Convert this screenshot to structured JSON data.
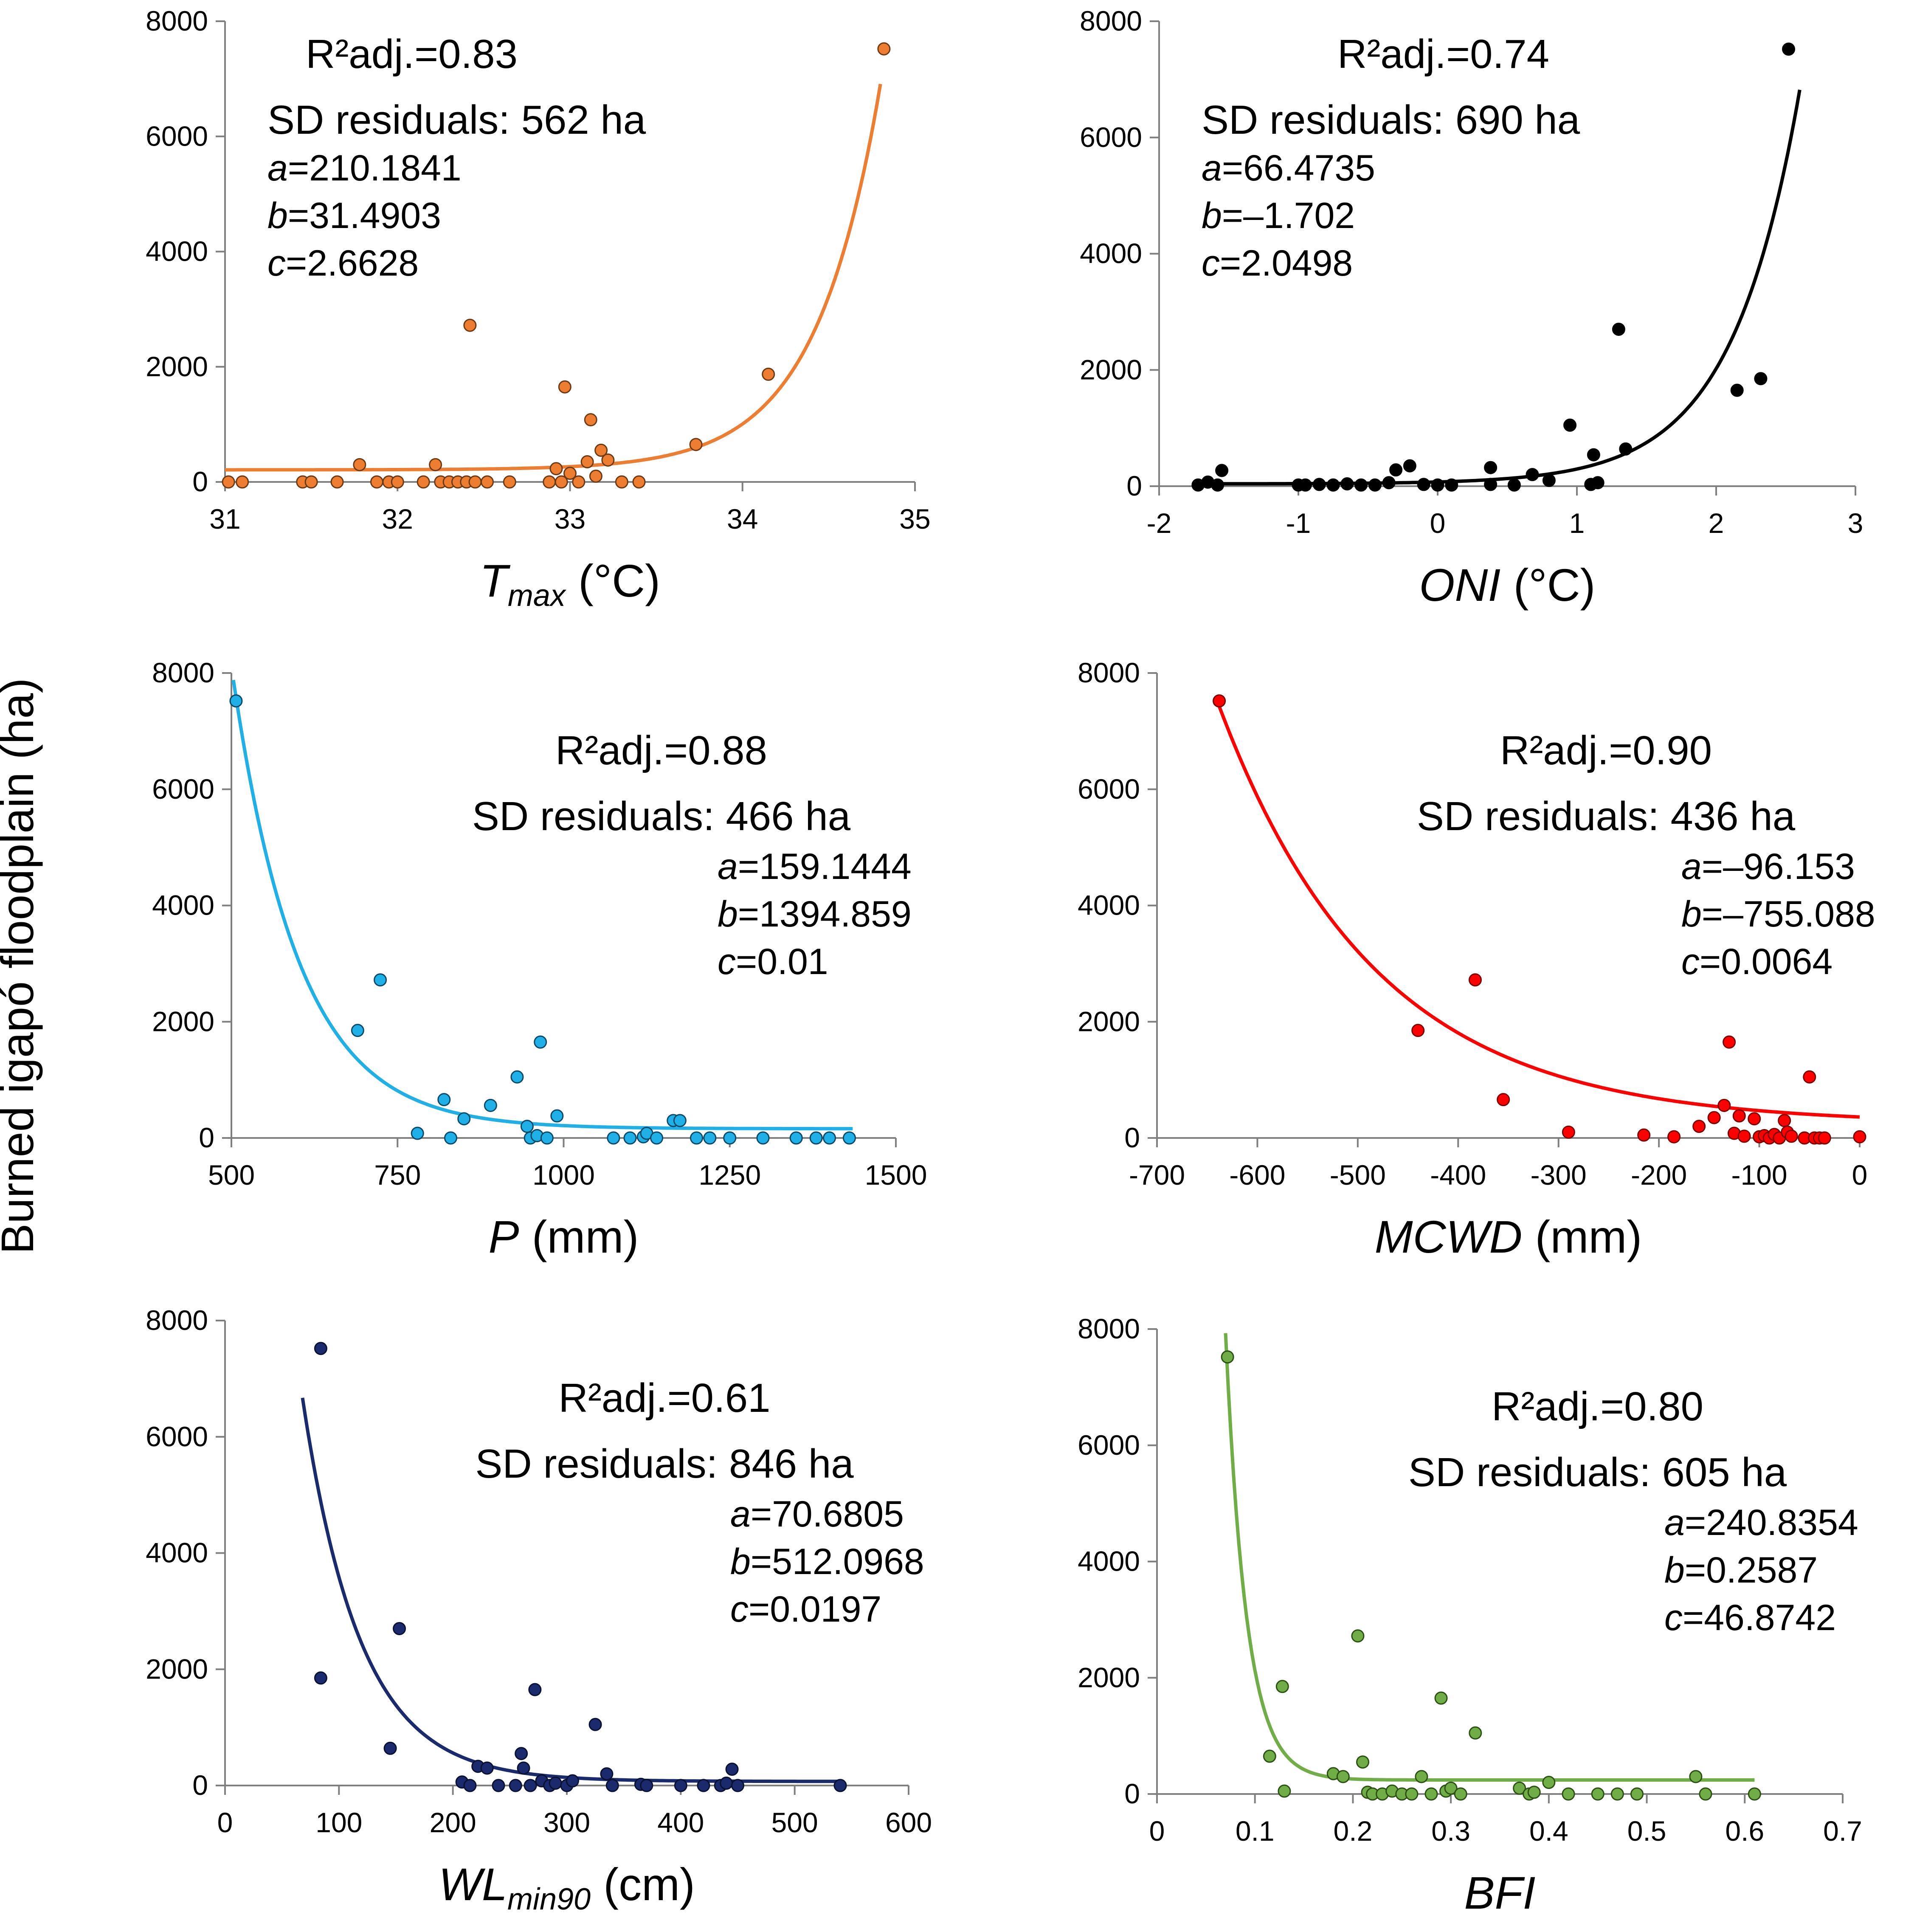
{
  "y_axis_label": "Burned igapó floodplain  (ha)",
  "chart_data": [
    {
      "type": "scatter",
      "id": "tmax",
      "xlabel": {
        "main": "T",
        "sub": "max",
        "unit": " (°C)"
      },
      "xlim": [
        31,
        35
      ],
      "xticks": [
        31,
        32,
        33,
        34,
        35
      ],
      "xtick_labels": [
        "31",
        "32",
        "33",
        "34",
        "35"
      ],
      "ylim": [
        0,
        8000
      ],
      "yticks": [
        0,
        2000,
        4000,
        6000,
        8000
      ],
      "ytick_labels": [
        "0",
        "2000",
        "4000",
        "6000",
        "8000"
      ],
      "color": "#ed7d31",
      "point_stroke": "#6b3a14",
      "annotations": {
        "r2": "R²adj.=0.83",
        "sd": "SD residuals:  562 ha",
        "a": "=210.1841",
        "b": "=31.4903",
        "c": "=2.6628",
        "align": "left"
      },
      "params": {
        "a": 210.1841,
        "b": 31.4903,
        "c": 2.6628
      },
      "fit": {
        "model": "exp_increase",
        "from": 31.0,
        "to": 34.8
      },
      "points": [
        [
          31.02,
          0
        ],
        [
          31.1,
          0
        ],
        [
          31.45,
          0
        ],
        [
          31.5,
          0
        ],
        [
          31.65,
          0
        ],
        [
          31.78,
          300
        ],
        [
          31.88,
          0
        ],
        [
          31.95,
          0
        ],
        [
          32.0,
          0
        ],
        [
          32.15,
          0
        ],
        [
          32.22,
          300
        ],
        [
          32.25,
          0
        ],
        [
          32.3,
          0
        ],
        [
          32.35,
          0
        ],
        [
          32.4,
          0
        ],
        [
          32.45,
          0
        ],
        [
          32.52,
          0
        ],
        [
          32.65,
          0
        ],
        [
          32.88,
          0
        ],
        [
          32.92,
          230
        ],
        [
          32.95,
          0
        ],
        [
          32.97,
          1650
        ],
        [
          33.0,
          150
        ],
        [
          33.05,
          0
        ],
        [
          33.1,
          350
        ],
        [
          33.12,
          1080
        ],
        [
          33.15,
          100
        ],
        [
          33.18,
          550
        ],
        [
          33.22,
          380
        ],
        [
          33.3,
          0
        ],
        [
          33.4,
          0
        ],
        [
          33.73,
          650
        ],
        [
          34.15,
          1870
        ],
        [
          34.82,
          7520
        ],
        [
          32.42,
          2720
        ]
      ]
    },
    {
      "type": "scatter",
      "id": "oni",
      "xlabel": {
        "main": "ONI",
        "sub": "",
        "unit": " (°C)"
      },
      "xlim": [
        -2,
        3
      ],
      "xticks": [
        -2,
        -1,
        0,
        1,
        2,
        3
      ],
      "xtick_labels": [
        "-2",
        "-1",
        "0",
        "1",
        "2",
        "3"
      ],
      "ylim": [
        0,
        8000
      ],
      "yticks": [
        0,
        2000,
        4000,
        6000,
        8000
      ],
      "ytick_labels": [
        "0",
        "2000",
        "4000",
        "6000",
        "8000"
      ],
      "color": "#000000",
      "point_stroke": "#000000",
      "annotations": {
        "r2": "R²adj.=0.74",
        "sd": "SD residuals:  690 ha",
        "a": "=66.4735",
        "b": "=–1.702",
        "c": "=2.0498",
        "align": "left"
      },
      "params": {
        "a": 66.4735,
        "b": -1.702,
        "c": 2.0498
      },
      "fit": {
        "model": "exp_increase",
        "from": -1.75,
        "to": 2.6
      },
      "points": [
        [
          -1.72,
          20
        ],
        [
          -1.65,
          70
        ],
        [
          -1.58,
          20
        ],
        [
          -1.55,
          270
        ],
        [
          -1.0,
          20
        ],
        [
          -0.95,
          20
        ],
        [
          -0.85,
          30
        ],
        [
          -0.75,
          20
        ],
        [
          -0.65,
          40
        ],
        [
          -0.55,
          20
        ],
        [
          -0.45,
          20
        ],
        [
          -0.35,
          60
        ],
        [
          -0.3,
          280
        ],
        [
          -0.2,
          350
        ],
        [
          -0.1,
          30
        ],
        [
          0.0,
          20
        ],
        [
          0.1,
          20
        ],
        [
          0.38,
          320
        ],
        [
          0.38,
          30
        ],
        [
          0.55,
          20
        ],
        [
          0.68,
          200
        ],
        [
          0.8,
          100
        ],
        [
          0.95,
          1050
        ],
        [
          1.1,
          30
        ],
        [
          1.12,
          540
        ],
        [
          1.15,
          60
        ],
        [
          1.3,
          2700
        ],
        [
          1.35,
          640
        ],
        [
          2.15,
          1650
        ],
        [
          2.32,
          1850
        ],
        [
          2.52,
          7520
        ]
      ]
    },
    {
      "type": "scatter",
      "id": "p",
      "xlabel": {
        "main": "P",
        "sub": "",
        "unit": " (mm)"
      },
      "xlim": [
        500,
        1500
      ],
      "xticks": [
        500,
        750,
        1000,
        1250,
        1500
      ],
      "xtick_labels": [
        "500",
        "750",
        "1000",
        "1250",
        "1500"
      ],
      "ylim": [
        0,
        8000
      ],
      "yticks": [
        0,
        2000,
        4000,
        6000,
        8000
      ],
      "ytick_labels": [
        "0",
        "2000",
        "4000",
        "6000",
        "8000"
      ],
      "color": "#1fb0e8",
      "point_stroke": "#0a4a66",
      "annotations": {
        "r2": "R²adj.=0.88",
        "sd": "SD residuals:  466 ha",
        "a": "=159.1444",
        "b": "=1394.859",
        "c": "=0.01",
        "align": "right"
      },
      "params": {
        "a": 159.1444,
        "b": 1394.859,
        "c": 0.01
      },
      "fit": {
        "model": "exp_decrease",
        "from": 503,
        "to": 1435
      },
      "points": [
        [
          507,
          7520
        ],
        [
          690,
          1850
        ],
        [
          724,
          2720
        ],
        [
          780,
          80
        ],
        [
          820,
          660
        ],
        [
          830,
          0
        ],
        [
          850,
          330
        ],
        [
          890,
          560
        ],
        [
          930,
          1050
        ],
        [
          945,
          200
        ],
        [
          950,
          0
        ],
        [
          960,
          40
        ],
        [
          965,
          1650
        ],
        [
          975,
          0
        ],
        [
          990,
          380
        ],
        [
          1075,
          0
        ],
        [
          1100,
          0
        ],
        [
          1120,
          20
        ],
        [
          1125,
          80
        ],
        [
          1140,
          0
        ],
        [
          1165,
          300
        ],
        [
          1175,
          300
        ],
        [
          1200,
          0
        ],
        [
          1220,
          0
        ],
        [
          1250,
          0
        ],
        [
          1300,
          0
        ],
        [
          1350,
          0
        ],
        [
          1380,
          0
        ],
        [
          1400,
          0
        ],
        [
          1430,
          0
        ]
      ]
    },
    {
      "type": "scatter",
      "id": "mcwd",
      "xlabel": {
        "main": "MCWD",
        "sub": "",
        "unit": " (mm)"
      },
      "xlim": [
        -700,
        0
      ],
      "xticks": [
        -700,
        -600,
        -500,
        -400,
        -300,
        -200,
        -100,
        0
      ],
      "xtick_labels": [
        "-700",
        "-600",
        "-500",
        "-400",
        "-300",
        "-200",
        "-100",
        "0"
      ],
      "ylim": [
        0,
        8000
      ],
      "yticks": [
        0,
        2000,
        4000,
        6000,
        8000
      ],
      "ytick_labels": [
        "0",
        "2000",
        "4000",
        "6000",
        "8000"
      ],
      "color": "#ff0000",
      "point_stroke": "#7a0000",
      "annotations": {
        "r2": "R²adj.=0.90",
        "sd": "SD residuals:  436 ha",
        "a": "=–96.153",
        "b": "=–755.088",
        "c": "=0.0064",
        "align": "right"
      },
      "params": {
        "a": -96.153,
        "b": -755.088,
        "c": 0.0064
      },
      "fit": {
        "model": "exp_mcwd",
        "from": -640,
        "to": 0
      },
      "points": [
        [
          -638,
          7520
        ],
        [
          -440,
          1850
        ],
        [
          -383,
          2720
        ],
        [
          -355,
          660
        ],
        [
          -290,
          100
        ],
        [
          -215,
          50
        ],
        [
          -185,
          20
        ],
        [
          -160,
          200
        ],
        [
          -145,
          350
        ],
        [
          -135,
          560
        ],
        [
          -130,
          1650
        ],
        [
          -125,
          80
        ],
        [
          -120,
          380
        ],
        [
          -115,
          30
        ],
        [
          -105,
          330
        ],
        [
          -100,
          20
        ],
        [
          -95,
          40
        ],
        [
          -90,
          0
        ],
        [
          -85,
          60
        ],
        [
          -80,
          0
        ],
        [
          -75,
          300
        ],
        [
          -72,
          100
        ],
        [
          -68,
          30
        ],
        [
          -55,
          0
        ],
        [
          -50,
          1050
        ],
        [
          -45,
          0
        ],
        [
          -40,
          0
        ],
        [
          -35,
          0
        ],
        [
          0,
          20
        ]
      ]
    },
    {
      "type": "scatter",
      "id": "wl",
      "xlabel": {
        "main": "WL",
        "sub": "min90",
        "unit": " (cm)"
      },
      "xlim": [
        0,
        600
      ],
      "xticks": [
        0,
        100,
        200,
        300,
        400,
        500,
        600
      ],
      "xtick_labels": [
        "0",
        "100",
        "200",
        "300",
        "400",
        "500",
        "600"
      ],
      "ylim": [
        0,
        8000
      ],
      "yticks": [
        0,
        2000,
        4000,
        6000,
        8000
      ],
      "ytick_labels": [
        "0",
        "2000",
        "4000",
        "6000",
        "8000"
      ],
      "color": "#1a2a6c",
      "point_stroke": "#0a1030",
      "annotations": {
        "r2": "R²adj.=0.61",
        "sd": "SD residuals:  846 ha",
        "a": "=70.6805",
        "b": "=512.0968",
        "c": "=0.0197",
        "align": "right"
      },
      "params": {
        "a": 70.6805,
        "b": 512.0968,
        "c": 0.0197
      },
      "fit": {
        "model": "exp_decrease",
        "from": 68,
        "to": 540
      },
      "points": [
        [
          84,
          7520
        ],
        [
          84,
          1850
        ],
        [
          145,
          640
        ],
        [
          153,
          2700
        ],
        [
          208,
          60
        ],
        [
          215,
          0
        ],
        [
          222,
          330
        ],
        [
          230,
          300
        ],
        [
          240,
          0
        ],
        [
          255,
          0
        ],
        [
          260,
          550
        ],
        [
          262,
          300
        ],
        [
          268,
          0
        ],
        [
          272,
          1650
        ],
        [
          278,
          80
        ],
        [
          285,
          0
        ],
        [
          290,
          40
        ],
        [
          300,
          0
        ],
        [
          305,
          80
        ],
        [
          325,
          1050
        ],
        [
          335,
          200
        ],
        [
          340,
          0
        ],
        [
          365,
          20
        ],
        [
          370,
          0
        ],
        [
          400,
          0
        ],
        [
          420,
          0
        ],
        [
          435,
          0
        ],
        [
          440,
          40
        ],
        [
          445,
          280
        ],
        [
          450,
          0
        ],
        [
          540,
          0
        ]
      ]
    },
    {
      "type": "scatter",
      "id": "bfi",
      "xlabel": {
        "main": "BFI",
        "sub": "",
        "unit": ""
      },
      "xlim": [
        0,
        0.7
      ],
      "xticks": [
        0,
        0.1,
        0.2,
        0.3,
        0.4,
        0.5,
        0.6,
        0.7
      ],
      "xtick_labels": [
        "0",
        "0.1",
        "0.2",
        "0.3",
        "0.4",
        "0.5",
        "0.6",
        "0.7"
      ],
      "ylim": [
        0,
        8000
      ],
      "yticks": [
        0,
        2000,
        4000,
        6000,
        8000
      ],
      "ytick_labels": [
        "0",
        "2000",
        "4000",
        "6000",
        "8000"
      ],
      "color": "#70ad47",
      "point_stroke": "#2c5014",
      "annotations": {
        "r2": "R²adj.=0.80",
        "sd": "SD residuals:  605 ha",
        "a": "=240.8354",
        "b": "=0.2587",
        "c": "=46.8742",
        "align": "right"
      },
      "params": {
        "a": 240.8354,
        "b": 0.2587,
        "c": 46.8742
      },
      "fit": {
        "model": "exp_bfi",
        "from": 0.07,
        "to": 0.61
      },
      "points": [
        [
          0.072,
          7520
        ],
        [
          0.115,
          650
        ],
        [
          0.128,
          1850
        ],
        [
          0.13,
          50
        ],
        [
          0.18,
          350
        ],
        [
          0.19,
          300
        ],
        [
          0.205,
          2720
        ],
        [
          0.21,
          550
        ],
        [
          0.215,
          30
        ],
        [
          0.22,
          0
        ],
        [
          0.23,
          0
        ],
        [
          0.24,
          50
        ],
        [
          0.25,
          0
        ],
        [
          0.26,
          0
        ],
        [
          0.27,
          300
        ],
        [
          0.28,
          0
        ],
        [
          0.29,
          1650
        ],
        [
          0.295,
          50
        ],
        [
          0.3,
          100
        ],
        [
          0.31,
          0
        ],
        [
          0.325,
          1050
        ],
        [
          0.37,
          100
        ],
        [
          0.38,
          0
        ],
        [
          0.385,
          30
        ],
        [
          0.4,
          200
        ],
        [
          0.42,
          0
        ],
        [
          0.45,
          0
        ],
        [
          0.47,
          0
        ],
        [
          0.49,
          0
        ],
        [
          0.55,
          300
        ],
        [
          0.56,
          0
        ],
        [
          0.61,
          0
        ]
      ]
    }
  ]
}
